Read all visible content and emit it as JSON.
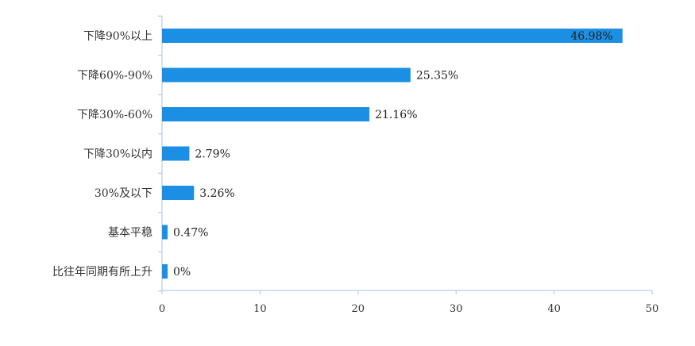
{
  "chart_data": {
    "type": "bar",
    "orientation": "horizontal",
    "categories": [
      "下降90%以上",
      "下降60%-90%",
      "下降30%-60%",
      "下降30%以内",
      "30%及以下",
      "基本平稳",
      "比往年同期有所上升"
    ],
    "values": [
      46.98,
      25.35,
      21.16,
      2.79,
      3.26,
      0.47,
      0
    ],
    "value_labels": [
      "46.98%",
      "25.35%",
      "21.16%",
      "2.79%",
      "3.26%",
      "0.47%",
      "0%"
    ],
    "xlim": [
      0,
      50
    ],
    "xticks": [
      0,
      10,
      20,
      30,
      40,
      50
    ],
    "grid": false,
    "legend": "none",
    "bar_color": "#1a8fe3",
    "axis_color": "#a9c3de"
  }
}
